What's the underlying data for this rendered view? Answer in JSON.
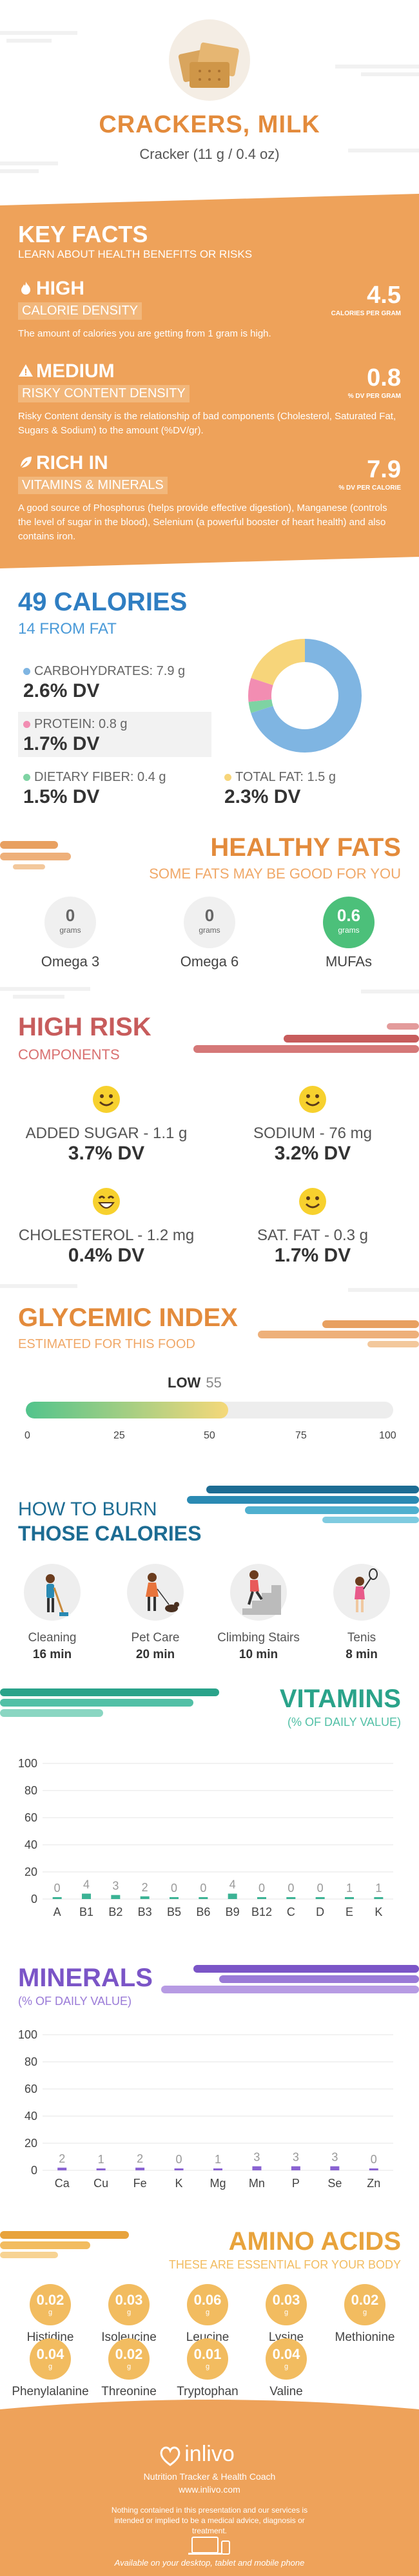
{
  "header": {
    "title": "CRACKERS, MILK",
    "serving": "Cracker (11 g / 0.4 oz)"
  },
  "key_facts": {
    "title": "KEY FACTS",
    "subtitle": "LEARN ABOUT HEALTH BENEFITS OR RISKS",
    "items": [
      {
        "level": "HIGH",
        "name": "CALORIE DENSITY",
        "value": "4.5",
        "unit": "CALORIES PER GRAM",
        "desc": "The amount of calories you are getting from 1 gram is high."
      },
      {
        "level": "MEDIUM",
        "name": "RISKY CONTENT DENSITY",
        "value": "0.8",
        "unit": "% DV PER GRAM",
        "desc": "Risky Content density is the relationship of bad components (Cholesterol, Saturated Fat, Sugars & Sodium) to the amount (%DV/gr)."
      },
      {
        "level": "RICH  IN",
        "name": "VITAMINS & MINERALS",
        "value": "7.9",
        "unit": "% DV PER CALORIE",
        "desc": "A good source of Phosphorus (helps provide effective digestion), Manganese (controls the level of sugar in the blood), Selenium (a powerful booster of heart health) and also contains iron."
      }
    ]
  },
  "calories": {
    "title": "49 CALORIES",
    "subtitle": "14 FROM FAT",
    "nutrients": [
      {
        "label": "CARBOHYDRATES: 7.9 g",
        "dv": "2.6% DV",
        "color": "#7fb5e2"
      },
      {
        "label": "PROTEIN: 0.8 g",
        "dv": "1.7% DV",
        "color": "#f28db2"
      },
      {
        "label": "DIETARY FIBER: 0.4 g",
        "dv": "1.5% DV",
        "color": "#7ed3a3"
      },
      {
        "label": "TOTAL FAT: 1.5 g",
        "dv": "2.3% DV",
        "color": "#f7d57a"
      }
    ]
  },
  "healthy_fats": {
    "title": "HEALTHY FATS",
    "subtitle": "SOME FATS MAY BE GOOD FOR YOU",
    "items": [
      {
        "value": "0",
        "unit": "grams",
        "name": "Omega 3"
      },
      {
        "value": "0",
        "unit": "grams",
        "name": "Omega 6"
      },
      {
        "value": "0.6",
        "unit": "grams",
        "name": "MUFAs"
      }
    ]
  },
  "high_risk": {
    "title": "HIGH RISK",
    "subtitle": "COMPONENTS",
    "items": [
      {
        "label": "ADDED SUGAR - 1.1 g",
        "dv": "3.7% DV"
      },
      {
        "label": "SODIUM - 76 mg",
        "dv": "3.2% DV"
      },
      {
        "label": "CHOLESTEROL - 1.2 mg",
        "dv": "0.4% DV"
      },
      {
        "label": "SAT. FAT - 0.3 g",
        "dv": "1.7% DV"
      }
    ]
  },
  "glycemic": {
    "title": "GLYCEMIC INDEX",
    "subtitle": "ESTIMATED FOR THIS FOOD",
    "level": "LOW",
    "value": "55",
    "value_fraction": 0.55,
    "ticks": [
      "0",
      "25",
      "50",
      "75",
      "100"
    ]
  },
  "burn": {
    "title_line1": "HOW TO BURN",
    "title_line2": "THOSE CALORIES",
    "activities": [
      {
        "name": "Cleaning",
        "time": "16 min"
      },
      {
        "name": "Pet Care",
        "time": "20 min"
      },
      {
        "name": "Climbing Stairs",
        "time": "10 min"
      },
      {
        "name": "Tenis",
        "time": "8 min"
      }
    ]
  },
  "vitamins": {
    "title": "VITAMINS",
    "subtitle": "(% OF DAILY VALUE)"
  },
  "minerals": {
    "title": "MINERALS",
    "subtitle": "(% OF DAILY VALUE)"
  },
  "chart_data": [
    {
      "type": "bar",
      "categories": [
        "A",
        "B1",
        "B2",
        "B3",
        "B5",
        "B6",
        "B9",
        "B12",
        "C",
        "D",
        "E",
        "K"
      ],
      "values": [
        0,
        4,
        3,
        2,
        0,
        0,
        4,
        0,
        0,
        0,
        1,
        1
      ],
      "ylim": [
        0,
        100
      ],
      "yticks": [
        0,
        20,
        40,
        60,
        80,
        100
      ],
      "color": "#3cb395"
    },
    {
      "type": "bar",
      "categories": [
        "Ca",
        "Cu",
        "Fe",
        "K",
        "Mg",
        "Mn",
        "P",
        "Se",
        "Zn"
      ],
      "values": [
        2,
        1,
        2,
        0,
        1,
        3,
        3,
        3,
        0
      ],
      "ylim": [
        0,
        100
      ],
      "yticks": [
        0,
        20,
        40,
        60,
        80,
        100
      ],
      "color": "#8a63d2"
    }
  ],
  "amino": {
    "title": "AMINO ACIDS",
    "subtitle": "THESE ARE ESSENTIAL FOR YOUR BODY",
    "items": [
      {
        "value": "0.02",
        "unit": "g",
        "name": "Histidine"
      },
      {
        "value": "0.03",
        "unit": "g",
        "name": "Isoleucine"
      },
      {
        "value": "0.06",
        "unit": "g",
        "name": "Leucine"
      },
      {
        "value": "0.03",
        "unit": "g",
        "name": "Lysine"
      },
      {
        "value": "0.02",
        "unit": "g",
        "name": "Methionine"
      },
      {
        "value": "0.04",
        "unit": "g",
        "name": "Phenylalanine"
      },
      {
        "value": "0.02",
        "unit": "g",
        "name": "Threonine"
      },
      {
        "value": "0.01",
        "unit": "g",
        "name": "Tryptophan"
      },
      {
        "value": "0.04",
        "unit": "g",
        "name": "Valine"
      }
    ]
  },
  "footer": {
    "brand": "inlivo",
    "tagline": "Nutrition Tracker & Health Coach",
    "url": "www.inlivo.com",
    "disclaimer": "Nothing contained in this presentation and our services is intended or implied to be a medical advice, diagnosis or treatment.",
    "available": "Available on your desktop, tablet and mobile phone"
  }
}
